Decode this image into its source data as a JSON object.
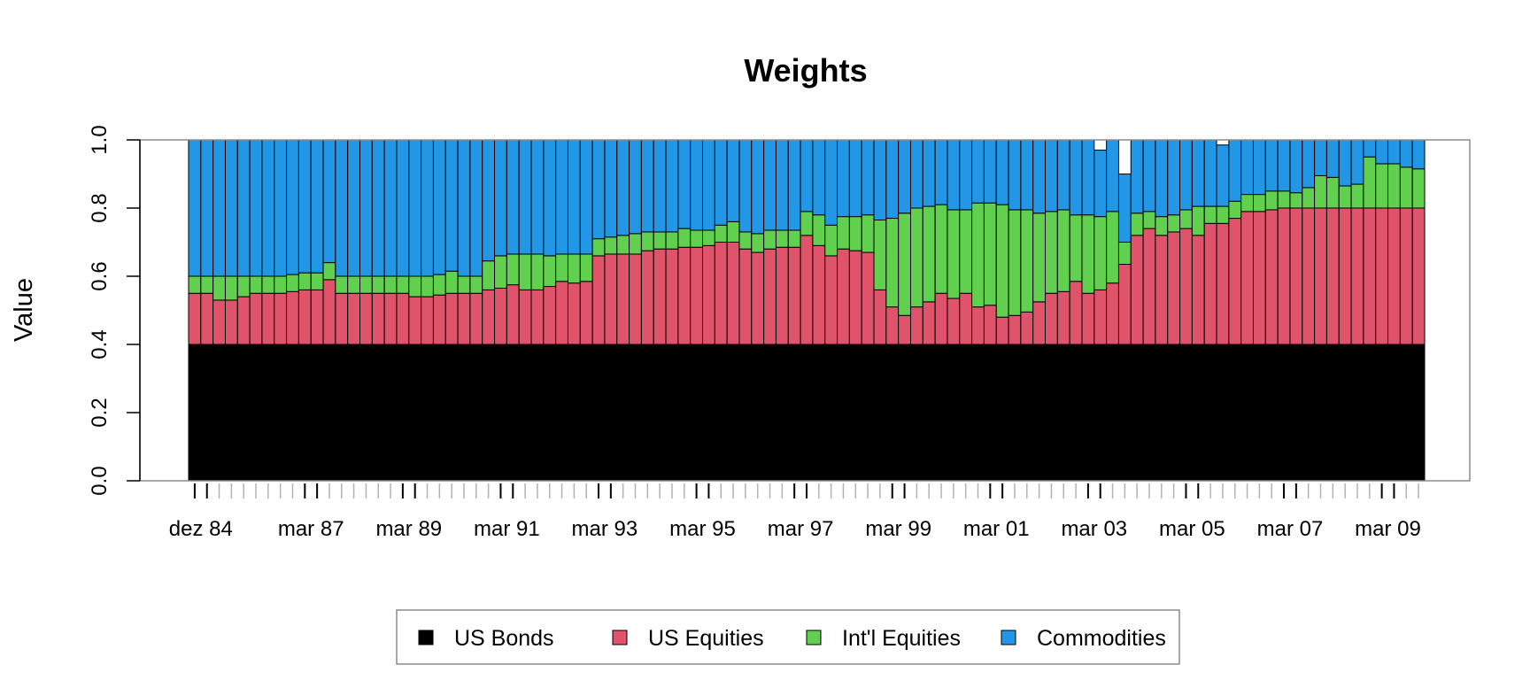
{
  "chart_data": {
    "type": "bar",
    "stacked": true,
    "title": "Weights",
    "ylabel": "Value",
    "xlabel": "",
    "ylim": [
      0,
      1
    ],
    "y_ticks": [
      "0.0",
      "0.2",
      "0.4",
      "0.6",
      "0.8",
      "1.0"
    ],
    "x_tick_labels": [
      "dez 84",
      "mar 87",
      "mar 89",
      "mar 91",
      "mar 93",
      "mar 95",
      "mar 97",
      "mar 99",
      "mar 01",
      "mar 03",
      "mar 05",
      "mar 07",
      "mar 09"
    ],
    "x_tick_label_bar_index": [
      0,
      9,
      17,
      25,
      33,
      41,
      49,
      57,
      65,
      73,
      81,
      89,
      97
    ],
    "grid": false,
    "legend_position": "bottom",
    "colors": {
      "US Bonds": "#000000",
      "US Equities": "#DF536B",
      "Int'l Equities": "#61D04F",
      "Commodities": "#2297E6"
    },
    "series": [
      {
        "name": "US Bonds",
        "values": [
          0.4,
          0.4,
          0.4,
          0.4,
          0.4,
          0.4,
          0.4,
          0.4,
          0.4,
          0.4,
          0.4,
          0.4,
          0.4,
          0.4,
          0.4,
          0.4,
          0.4,
          0.4,
          0.4,
          0.4,
          0.4,
          0.4,
          0.4,
          0.4,
          0.4,
          0.4,
          0.4,
          0.4,
          0.4,
          0.4,
          0.4,
          0.4,
          0.4,
          0.4,
          0.4,
          0.4,
          0.4,
          0.4,
          0.4,
          0.4,
          0.4,
          0.4,
          0.4,
          0.4,
          0.4,
          0.4,
          0.4,
          0.4,
          0.4,
          0.4,
          0.4,
          0.4,
          0.4,
          0.4,
          0.4,
          0.4,
          0.4,
          0.4,
          0.4,
          0.4,
          0.4,
          0.4,
          0.4,
          0.4,
          0.4,
          0.4,
          0.4,
          0.4,
          0.4,
          0.4,
          0.4,
          0.4,
          0.4,
          0.4,
          0.4,
          0.4,
          0.4,
          0.4,
          0.4,
          0.4,
          0.4,
          0.4,
          0.4,
          0.4,
          0.4,
          0.4,
          0.4,
          0.4,
          0.4,
          0.4,
          0.4,
          0.4,
          0.4,
          0.4,
          0.4,
          0.4,
          0.4,
          0.4,
          0.4,
          0.4,
          0.4
        ]
      },
      {
        "name": "US Equities",
        "values": [
          0.15,
          0.15,
          0.13,
          0.13,
          0.14,
          0.15,
          0.15,
          0.15,
          0.155,
          0.16,
          0.16,
          0.19,
          0.15,
          0.15,
          0.15,
          0.15,
          0.15,
          0.15,
          0.14,
          0.14,
          0.145,
          0.15,
          0.15,
          0.15,
          0.16,
          0.165,
          0.175,
          0.16,
          0.16,
          0.17,
          0.185,
          0.18,
          0.185,
          0.26,
          0.265,
          0.265,
          0.265,
          0.275,
          0.28,
          0.28,
          0.285,
          0.285,
          0.29,
          0.3,
          0.3,
          0.28,
          0.27,
          0.28,
          0.285,
          0.285,
          0.32,
          0.29,
          0.26,
          0.28,
          0.275,
          0.27,
          0.16,
          0.11,
          0.085,
          0.11,
          0.125,
          0.15,
          0.135,
          0.15,
          0.11,
          0.115,
          0.08,
          0.085,
          0.095,
          0.125,
          0.15,
          0.155,
          0.185,
          0.15,
          0.16,
          0.18,
          0.235,
          0.32,
          0.34,
          0.32,
          0.33,
          0.34,
          0.32,
          0.355,
          0.355,
          0.37,
          0.39,
          0.39,
          0.395,
          0.4,
          0.4,
          0.4,
          0.4,
          0.4,
          0.4,
          0.4,
          0.4,
          0.4,
          0.4,
          0.4,
          0.4
        ]
      },
      {
        "name": "Int'l Equities",
        "values": [
          0.05,
          0.05,
          0.07,
          0.07,
          0.06,
          0.05,
          0.05,
          0.05,
          0.05,
          0.05,
          0.05,
          0.05,
          0.05,
          0.05,
          0.05,
          0.05,
          0.05,
          0.05,
          0.06,
          0.06,
          0.06,
          0.065,
          0.05,
          0.05,
          0.085,
          0.095,
          0.09,
          0.105,
          0.105,
          0.09,
          0.08,
          0.085,
          0.08,
          0.05,
          0.05,
          0.055,
          0.06,
          0.055,
          0.05,
          0.05,
          0.055,
          0.05,
          0.045,
          0.05,
          0.06,
          0.05,
          0.055,
          0.055,
          0.05,
          0.05,
          0.07,
          0.09,
          0.09,
          0.095,
          0.1,
          0.11,
          0.205,
          0.26,
          0.3,
          0.29,
          0.28,
          0.26,
          0.26,
          0.245,
          0.305,
          0.3,
          0.33,
          0.31,
          0.3,
          0.26,
          0.24,
          0.24,
          0.195,
          0.23,
          0.215,
          0.21,
          0.065,
          0.065,
          0.05,
          0.055,
          0.05,
          0.055,
          0.085,
          0.05,
          0.05,
          0.05,
          0.05,
          0.05,
          0.055,
          0.05,
          0.045,
          0.06,
          0.095,
          0.09,
          0.065,
          0.07,
          0.15,
          0.13,
          0.13,
          0.12,
          0.115
        ]
      },
      {
        "name": "Commodities",
        "values": [
          0.4,
          0.4,
          0.4,
          0.4,
          0.4,
          0.4,
          0.4,
          0.4,
          0.395,
          0.39,
          0.39,
          0.36,
          0.4,
          0.4,
          0.4,
          0.4,
          0.4,
          0.4,
          0.4,
          0.4,
          0.395,
          0.385,
          0.4,
          0.4,
          0.355,
          0.34,
          0.335,
          0.335,
          0.335,
          0.34,
          0.335,
          0.335,
          0.335,
          0.29,
          0.285,
          0.28,
          0.275,
          0.27,
          0.27,
          0.27,
          0.26,
          0.265,
          0.265,
          0.25,
          0.24,
          0.27,
          0.275,
          0.265,
          0.265,
          0.265,
          0.21,
          0.22,
          0.25,
          0.225,
          0.225,
          0.22,
          0.235,
          0.23,
          0.215,
          0.2,
          0.195,
          0.19,
          0.205,
          0.205,
          0.185,
          0.185,
          0.19,
          0.205,
          0.205,
          0.215,
          0.21,
          0.205,
          0.22,
          0.22,
          0.195,
          0.21,
          0.2,
          0.215,
          0.21,
          0.225,
          0.22,
          0.205,
          0.195,
          0.195,
          0.18,
          0.18,
          0.16,
          0.16,
          0.15,
          0.15,
          0.155,
          0.14,
          0.105,
          0.11,
          0.135,
          0.13,
          0.05,
          0.07,
          0.07,
          0.08,
          0.085
        ]
      }
    ]
  }
}
